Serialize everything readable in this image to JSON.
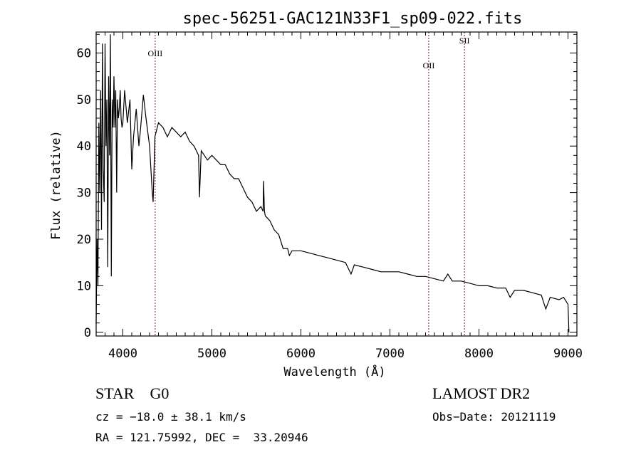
{
  "chart_data": {
    "type": "line",
    "title": "spec-56251-GAC121N33F1_sp09-022.fits",
    "xlabel": "Wavelength (Å)",
    "ylabel": "Flux (relative)",
    "xlim": [
      3700,
      9100
    ],
    "ylim": [
      -0.8,
      64.5
    ],
    "xticks": [
      4000,
      5000,
      6000,
      7000,
      8000,
      9000
    ],
    "yticks": [
      0,
      10,
      20,
      30,
      40,
      50,
      60
    ],
    "grid": false,
    "line_color": "#000000",
    "marker_color": "#8b1a1a",
    "lines": [
      {
        "label": "OIII",
        "x": 4363
      },
      {
        "label": "OII",
        "x": 7436
      },
      {
        "label": "SII",
        "x": 7837
      }
    ],
    "series": [
      {
        "name": "flux",
        "x": [
          3700,
          3710,
          3720,
          3730,
          3740,
          3750,
          3760,
          3770,
          3780,
          3790,
          3800,
          3810,
          3820,
          3830,
          3840,
          3850,
          3860,
          3870,
          3880,
          3890,
          3900,
          3910,
          3920,
          3930,
          3940,
          3950,
          3960,
          3970,
          3980,
          3990,
          4000,
          4020,
          4050,
          4080,
          4100,
          4120,
          4150,
          4180,
          4200,
          4230,
          4260,
          4300,
          4330,
          4340,
          4360,
          4400,
          4450,
          4500,
          4550,
          4600,
          4650,
          4700,
          4750,
          4800,
          4850,
          4861,
          4880,
          4950,
          5000,
          5050,
          5100,
          5150,
          5200,
          5250,
          5300,
          5350,
          5400,
          5450,
          5500,
          5550,
          5575,
          5580,
          5590,
          5600,
          5650,
          5700,
          5750,
          5800,
          5850,
          5870,
          5900,
          6000,
          6100,
          6200,
          6300,
          6400,
          6500,
          6563,
          6600,
          6700,
          6800,
          6900,
          7000,
          7100,
          7200,
          7300,
          7400,
          7500,
          7600,
          7650,
          7700,
          7800,
          7900,
          8000,
          8100,
          8200,
          8300,
          8350,
          8400,
          8500,
          8600,
          8700,
          8750,
          8800,
          8900,
          8950,
          9000,
          9010
        ],
        "y": [
          2,
          20,
          10,
          45,
          30,
          52,
          22,
          62,
          35,
          28,
          62,
          40,
          50,
          14,
          55,
          38,
          64,
          12,
          50,
          44,
          55,
          44,
          52,
          30,
          50,
          46,
          48,
          52,
          46,
          44,
          45,
          52,
          45,
          50,
          35,
          42,
          48,
          40,
          44,
          51,
          46,
          40,
          30,
          28,
          42,
          45,
          44,
          42,
          44,
          43,
          42,
          43,
          41,
          40,
          38,
          29,
          39,
          37,
          38,
          37,
          36,
          36,
          34,
          33,
          33,
          31,
          29,
          28,
          26,
          27,
          26,
          32.5,
          26,
          25,
          24,
          22,
          21,
          18,
          18,
          16.5,
          17.5,
          17.5,
          17,
          16.5,
          16,
          15.5,
          15,
          12.5,
          14.5,
          14,
          13.5,
          13,
          13,
          13,
          12.5,
          12,
          12,
          11.5,
          11,
          12.5,
          11,
          11,
          10.5,
          10,
          10,
          9.5,
          9.5,
          7.5,
          9,
          9,
          8.5,
          8,
          5,
          7.5,
          7,
          7.5,
          6,
          0
        ]
      }
    ]
  },
  "info": {
    "class": "STAR    G0",
    "survey": "LAMOST DR2",
    "cz": "cz = −18.0 ± 38.1 km/s",
    "obs_date": "Obs−Date: 20121119",
    "coords": "RA = 121.75992, DEC =  33.20946"
  }
}
